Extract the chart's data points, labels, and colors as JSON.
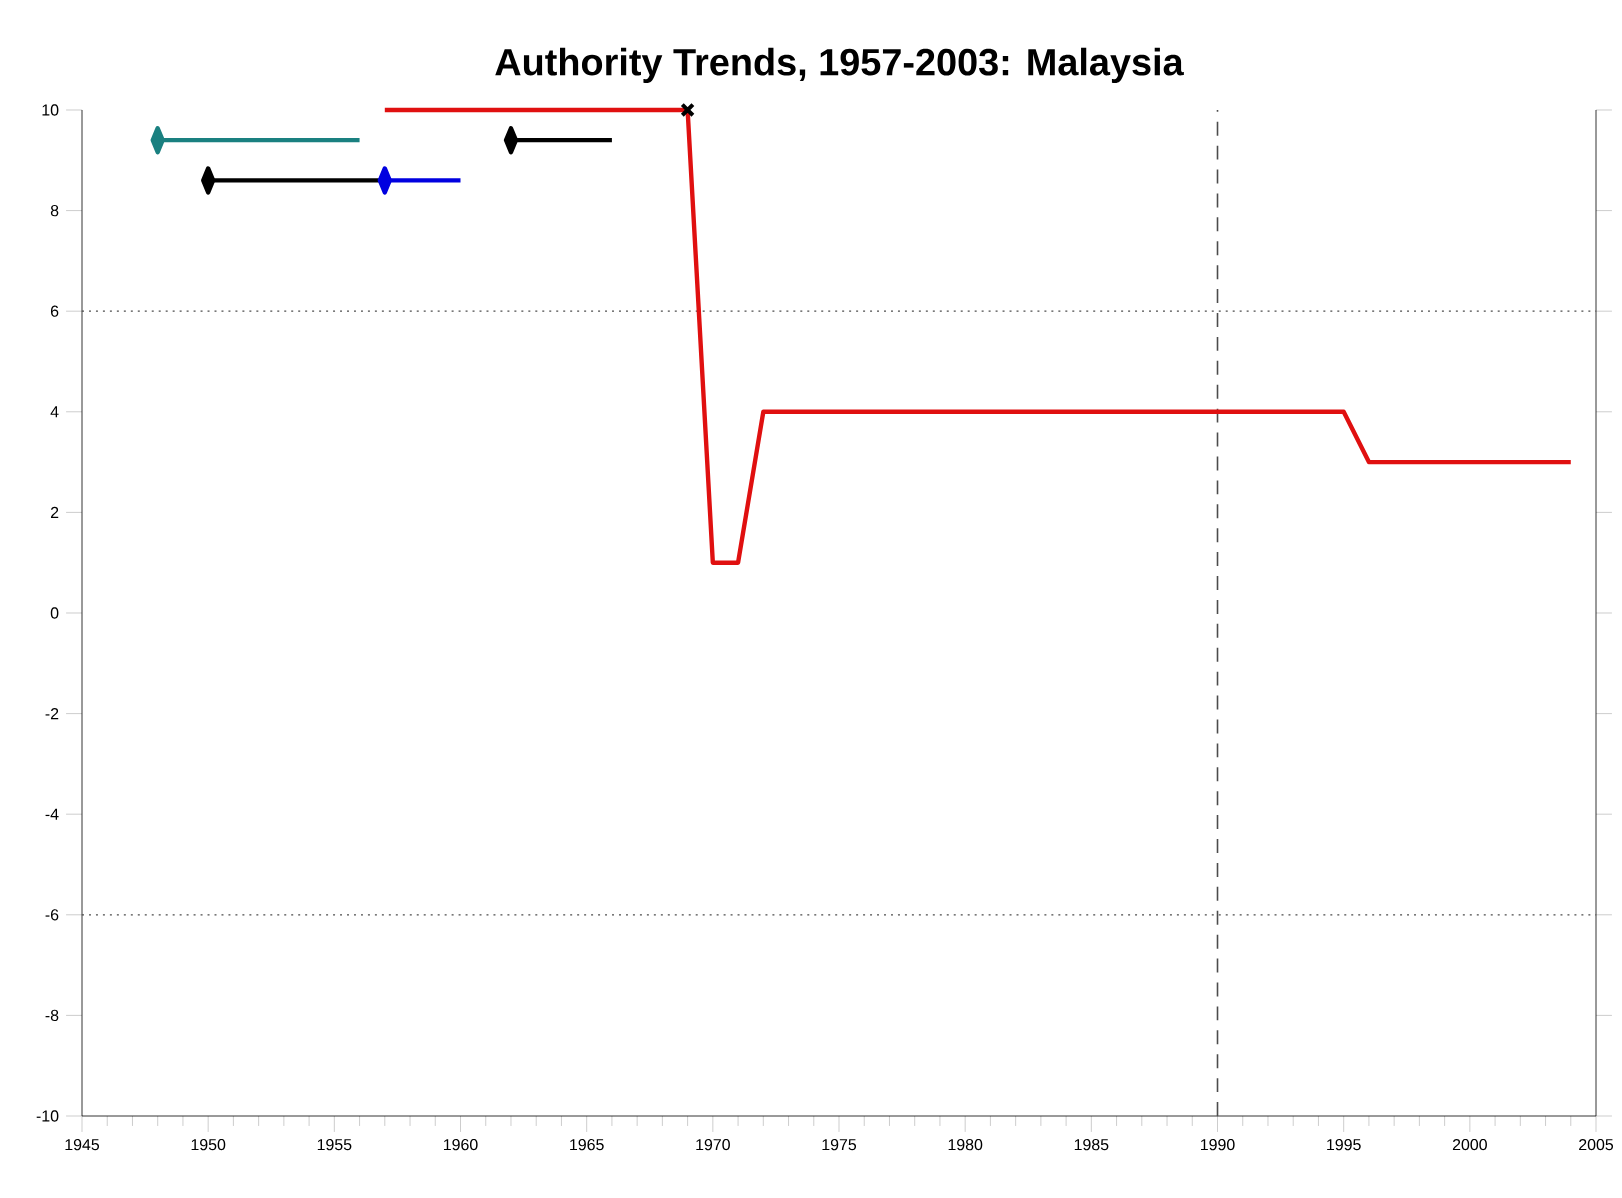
{
  "chart_data": {
    "type": "line",
    "title": "Authority Trends, 1957-2003: Malaysia",
    "xlim": [
      1945,
      2005
    ],
    "ylim": [
      -10,
      10
    ],
    "xticks": [
      1945,
      1950,
      1955,
      1960,
      1965,
      1970,
      1975,
      1980,
      1985,
      1990,
      1995,
      2000,
      2005
    ],
    "yticks": [
      -10,
      -8,
      -6,
      -4,
      -2,
      0,
      2,
      4,
      6,
      8,
      10
    ],
    "ref_lines": [
      {
        "axis": "y",
        "value": 6,
        "line_style": "dotted"
      },
      {
        "axis": "y",
        "value": -6,
        "line_style": "dotted"
      },
      {
        "axis": "x",
        "value": 1990,
        "line_style": "dashed"
      }
    ],
    "series": [
      {
        "color": "#1a8080",
        "marker": "diamond",
        "x": [
          1948,
          1956
        ],
        "values": [
          9.4,
          9.4
        ]
      },
      {
        "color": "#000000",
        "marker": "diamond",
        "x": [
          1950,
          1957
        ],
        "values": [
          8.6,
          8.6
        ]
      },
      {
        "color": "#0000e0",
        "marker": "diamond",
        "x": [
          1957,
          1960
        ],
        "values": [
          8.6,
          8.6
        ]
      },
      {
        "color": "#000000",
        "marker": "diamond",
        "x": [
          1962,
          1966
        ],
        "values": [
          9.4,
          9.4
        ]
      },
      {
        "color": "#e01010",
        "x": [
          1957,
          1969,
          1970,
          1971,
          1972,
          1995,
          1996,
          2004
        ],
        "values": [
          10,
          10,
          1,
          1,
          4,
          4,
          3,
          3
        ]
      },
      {
        "type": "scatter",
        "marker": "cross",
        "color": "#000000",
        "x": [
          1969
        ],
        "values": [
          10
        ]
      }
    ]
  }
}
